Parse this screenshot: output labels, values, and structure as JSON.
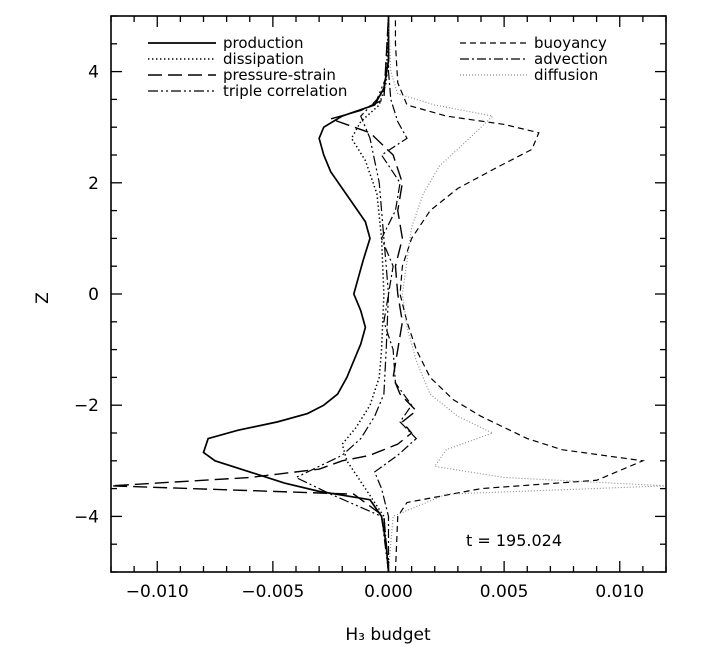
{
  "chart_data": {
    "type": "line",
    "orientation": "profile",
    "xlabel": "H₃ budget",
    "ylabel": "Z",
    "xlim": [
      -0.012,
      0.012
    ],
    "ylim": [
      -5,
      5
    ],
    "xticks": [
      -0.01,
      -0.005,
      0.0,
      0.005,
      0.01
    ],
    "xtick_labels": [
      "−0.010",
      "−0.005",
      "0.000",
      "0.005",
      "0.010"
    ],
    "yticks": [
      -4,
      -2,
      0,
      2,
      4
    ],
    "ytick_labels": [
      "−4",
      "−2",
      "0",
      "2",
      "4"
    ],
    "annotation": "t = 195.024",
    "grid": false,
    "legend_placement": "top",
    "series": [
      {
        "name": "production",
        "style": "solid",
        "color": "#000000",
        "points": [
          [
            0.0,
            -5.0
          ],
          [
            -0.0001,
            -4.5
          ],
          [
            -0.0003,
            -4.0
          ],
          [
            -0.0008,
            -3.7
          ],
          [
            -0.003,
            -3.55
          ],
          [
            -0.0045,
            -3.4
          ],
          [
            -0.006,
            -3.2
          ],
          [
            -0.0075,
            -3.0
          ],
          [
            -0.008,
            -2.85
          ],
          [
            -0.0078,
            -2.6
          ],
          [
            -0.0065,
            -2.45
          ],
          [
            -0.0048,
            -2.3
          ],
          [
            -0.0035,
            -2.15
          ],
          [
            -0.0028,
            -2.0
          ],
          [
            -0.0022,
            -1.8
          ],
          [
            -0.0018,
            -1.5
          ],
          [
            -0.0015,
            -1.2
          ],
          [
            -0.0012,
            -0.9
          ],
          [
            -0.001,
            -0.6
          ],
          [
            -0.0012,
            -0.3
          ],
          [
            -0.0015,
            0.0
          ],
          [
            -0.0013,
            0.3
          ],
          [
            -0.0011,
            0.6
          ],
          [
            -0.0008,
            1.0
          ],
          [
            -0.001,
            1.3
          ],
          [
            -0.0015,
            1.6
          ],
          [
            -0.002,
            1.9
          ],
          [
            -0.0025,
            2.2
          ],
          [
            -0.0028,
            2.5
          ],
          [
            -0.003,
            2.8
          ],
          [
            -0.0028,
            3.0
          ],
          [
            -0.002,
            3.2
          ],
          [
            -0.0006,
            3.4
          ],
          [
            -0.0002,
            3.7
          ],
          [
            0.0,
            4.2
          ],
          [
            0.0,
            5.0
          ]
        ]
      },
      {
        "name": "dissipation",
        "style": "dotted",
        "color": "#000000",
        "points": [
          [
            0.0,
            -5.0
          ],
          [
            -0.0002,
            -4.0
          ],
          [
            -0.001,
            -3.5
          ],
          [
            -0.0018,
            -3.0
          ],
          [
            -0.002,
            -2.7
          ],
          [
            -0.0014,
            -2.4
          ],
          [
            -0.0008,
            -2.0
          ],
          [
            -0.0004,
            -1.5
          ],
          [
            -0.0003,
            -1.0
          ],
          [
            -0.0002,
            0.0
          ],
          [
            -0.0003,
            1.0
          ],
          [
            -0.0005,
            1.8
          ],
          [
            -0.001,
            2.4
          ],
          [
            -0.0016,
            2.8
          ],
          [
            -0.0012,
            3.1
          ],
          [
            -0.0004,
            3.4
          ],
          [
            -0.0001,
            3.8
          ],
          [
            0.0,
            5.0
          ]
        ]
      },
      {
        "name": "pressure-strain",
        "style": "longdash",
        "color": "#000000",
        "points": [
          [
            0.0,
            -5.0
          ],
          [
            -0.0002,
            -4.0
          ],
          [
            -0.0015,
            -3.6
          ],
          [
            -0.012,
            -3.45
          ],
          [
            -0.006,
            -3.3
          ],
          [
            -0.003,
            -3.15
          ],
          [
            -0.002,
            -3.0
          ],
          [
            -0.0008,
            -2.9
          ],
          [
            0.0004,
            -2.7
          ],
          [
            0.001,
            -2.5
          ],
          [
            0.0006,
            -2.3
          ],
          [
            0.0012,
            -2.1
          ],
          [
            0.0005,
            -1.8
          ],
          [
            0.0002,
            -1.5
          ],
          [
            0.0004,
            -1.0
          ],
          [
            0.0006,
            -0.5
          ],
          [
            0.0004,
            0.0
          ],
          [
            0.0003,
            0.5
          ],
          [
            0.0006,
            1.0
          ],
          [
            0.0004,
            1.5
          ],
          [
            0.0006,
            2.0
          ],
          [
            0.0002,
            2.5
          ],
          [
            -0.0008,
            2.9
          ],
          [
            -0.0025,
            3.15
          ],
          [
            -0.0012,
            3.3
          ],
          [
            -0.0002,
            3.5
          ],
          [
            0.0,
            5.0
          ]
        ]
      },
      {
        "name": "triple correlation",
        "style": "dashdotdot",
        "color": "#000000",
        "points": [
          [
            0.0,
            -5.0
          ],
          [
            -0.0003,
            -4.0
          ],
          [
            -0.0025,
            -3.6
          ],
          [
            -0.004,
            -3.3
          ],
          [
            -0.003,
            -3.1
          ],
          [
            -0.002,
            -2.9
          ],
          [
            -0.0012,
            -2.6
          ],
          [
            -0.0006,
            -2.2
          ],
          [
            -0.0002,
            -1.8
          ],
          [
            -0.0001,
            -1.0
          ],
          [
            0.0,
            0.0
          ],
          [
            -0.0002,
            1.0
          ],
          [
            -0.0004,
            2.0
          ],
          [
            -0.0008,
            2.8
          ],
          [
            -0.0012,
            3.2
          ],
          [
            -0.0005,
            3.5
          ],
          [
            0.0,
            4.0
          ],
          [
            0.0,
            5.0
          ]
        ]
      },
      {
        "name": "buoyancy",
        "style": "dashed",
        "color": "#000000",
        "points": [
          [
            0.0003,
            -5.0
          ],
          [
            0.0004,
            -4.0
          ],
          [
            0.0008,
            -3.75
          ],
          [
            0.004,
            -3.5
          ],
          [
            0.009,
            -3.35
          ],
          [
            0.011,
            -3.0
          ],
          [
            0.0075,
            -2.8
          ],
          [
            0.006,
            -2.6
          ],
          [
            0.004,
            -2.2
          ],
          [
            0.0028,
            -1.9
          ],
          [
            0.0018,
            -1.5
          ],
          [
            0.0012,
            -1.0
          ],
          [
            0.0008,
            -0.5
          ],
          [
            0.0005,
            0.0
          ],
          [
            0.0006,
            0.5
          ],
          [
            0.001,
            1.0
          ],
          [
            0.0018,
            1.5
          ],
          [
            0.003,
            1.9
          ],
          [
            0.0048,
            2.3
          ],
          [
            0.0062,
            2.6
          ],
          [
            0.0065,
            2.9
          ],
          [
            0.005,
            3.05
          ],
          [
            0.0025,
            3.2
          ],
          [
            0.0008,
            3.4
          ],
          [
            0.0004,
            3.8
          ],
          [
            0.0003,
            4.5
          ],
          [
            0.0003,
            5.0
          ]
        ]
      },
      {
        "name": "advection",
        "style": "dashdot",
        "color": "#000000",
        "points": [
          [
            0.0,
            -5.0
          ],
          [
            0.0,
            -4.0
          ],
          [
            -0.0003,
            -3.5
          ],
          [
            -0.0006,
            -3.2
          ],
          [
            0.0004,
            -2.9
          ],
          [
            0.0012,
            -2.6
          ],
          [
            0.0005,
            -2.3
          ],
          [
            0.001,
            -2.0
          ],
          [
            0.0003,
            -1.6
          ],
          [
            0.0002,
            -1.0
          ],
          [
            -0.0002,
            -0.5
          ],
          [
            0.0,
            0.0
          ],
          [
            0.0002,
            0.5
          ],
          [
            -0.0003,
            1.0
          ],
          [
            0.0003,
            1.5
          ],
          [
            0.0005,
            2.0
          ],
          [
            -0.0003,
            2.5
          ],
          [
            0.0008,
            2.8
          ],
          [
            0.0004,
            3.1
          ],
          [
            0.0001,
            3.5
          ],
          [
            0.0,
            4.0
          ],
          [
            0.0,
            5.0
          ]
        ]
      },
      {
        "name": "diffusion",
        "style": "dotted-thin",
        "color": "#888888",
        "points": [
          [
            0.0,
            -5.0
          ],
          [
            0.0002,
            -4.0
          ],
          [
            0.0025,
            -3.6
          ],
          [
            0.012,
            -3.45
          ],
          [
            0.005,
            -3.3
          ],
          [
            0.002,
            -3.1
          ],
          [
            0.0025,
            -2.8
          ],
          [
            0.0045,
            -2.5
          ],
          [
            0.003,
            -2.2
          ],
          [
            0.0018,
            -1.8
          ],
          [
            0.0012,
            -1.2
          ],
          [
            0.0008,
            -0.6
          ],
          [
            0.0006,
            0.0
          ],
          [
            0.0008,
            0.6
          ],
          [
            0.001,
            1.2
          ],
          [
            0.0015,
            1.8
          ],
          [
            0.0022,
            2.3
          ],
          [
            0.0035,
            2.8
          ],
          [
            0.0045,
            3.2
          ],
          [
            0.002,
            3.4
          ],
          [
            0.0004,
            3.6
          ],
          [
            0.0001,
            4.0
          ],
          [
            0.0,
            5.0
          ]
        ]
      }
    ]
  }
}
